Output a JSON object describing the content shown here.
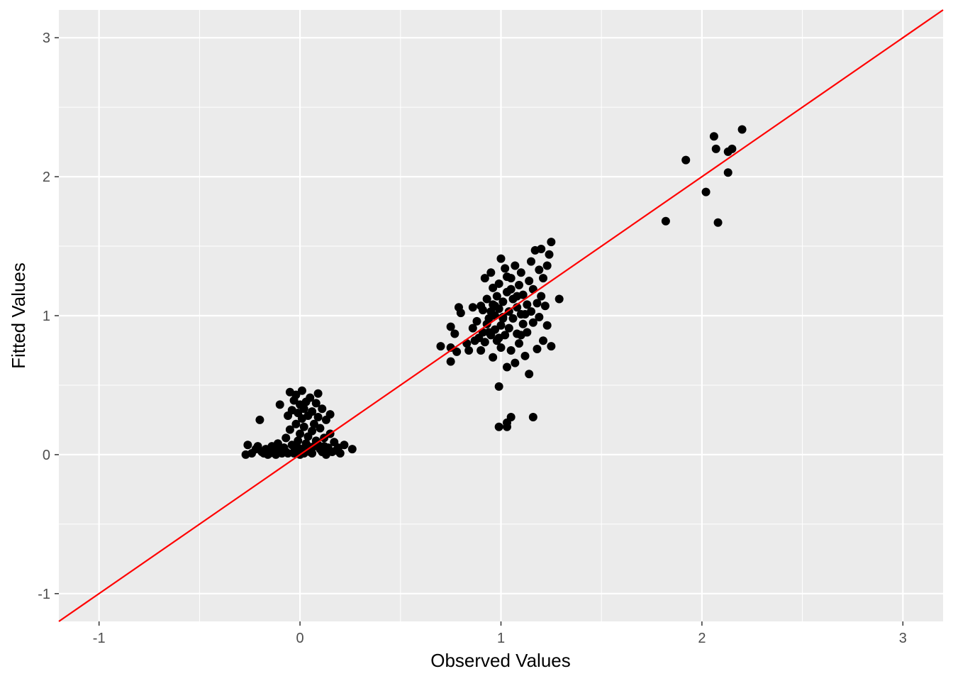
{
  "chart_data": {
    "type": "scatter",
    "title": "",
    "xlabel": "Observed Values",
    "ylabel": "Fitted Values",
    "xlim": [
      -1.2,
      3.2
    ],
    "ylim": [
      -1.2,
      3.2
    ],
    "x_ticks": [
      -1,
      0,
      1,
      2,
      3
    ],
    "y_ticks": [
      -1,
      0,
      1,
      2,
      3
    ],
    "x_tick_labels": [
      "-1",
      "0",
      "1",
      "2",
      "3"
    ],
    "y_tick_labels": [
      "-1",
      "0",
      "1",
      "2",
      "3"
    ],
    "grid": true,
    "legend": "none",
    "colors": {
      "panel": "#ebebeb",
      "grid": "#ffffff",
      "points": "#000000",
      "reference_line": "#ff0000"
    },
    "reference_line": {
      "slope": 1,
      "intercept": 0
    },
    "series": [
      {
        "points": [
          [
            1.82,
            1.68
          ],
          [
            1.92,
            2.12
          ],
          [
            2.02,
            1.89
          ],
          [
            2.06,
            2.29
          ],
          [
            2.07,
            2.2
          ],
          [
            2.08,
            1.67
          ],
          [
            2.13,
            2.18
          ],
          [
            2.13,
            2.03
          ],
          [
            2.15,
            2.2
          ],
          [
            2.2,
            2.34
          ],
          [
            0.99,
            0.2
          ],
          [
            1.03,
            0.2
          ],
          [
            1.03,
            0.23
          ],
          [
            1.05,
            0.27
          ],
          [
            1.16,
            0.27
          ],
          [
            0.99,
            0.49
          ],
          [
            0.7,
            0.78
          ],
          [
            0.75,
            0.67
          ],
          [
            0.75,
            0.77
          ],
          [
            0.75,
            0.92
          ],
          [
            0.77,
            0.87
          ],
          [
            0.78,
            0.74
          ],
          [
            0.79,
            1.06
          ],
          [
            0.8,
            1.02
          ],
          [
            0.83,
            0.8
          ],
          [
            0.84,
            0.75
          ],
          [
            0.86,
            1.06
          ],
          [
            0.86,
            0.91
          ],
          [
            0.87,
            0.82
          ],
          [
            0.88,
            0.96
          ],
          [
            0.89,
            0.84
          ],
          [
            0.9,
            1.07
          ],
          [
            0.9,
            0.75
          ],
          [
            0.91,
            1.04
          ],
          [
            0.91,
            0.88
          ],
          [
            0.92,
            0.81
          ],
          [
            0.92,
            1.27
          ],
          [
            0.93,
            0.94
          ],
          [
            0.93,
            1.12
          ],
          [
            0.94,
            0.98
          ],
          [
            0.95,
            1.31
          ],
          [
            0.95,
            0.86
          ],
          [
            0.96,
            1.2
          ],
          [
            0.96,
            1.08
          ],
          [
            0.96,
            0.7
          ],
          [
            0.97,
            1.0
          ],
          [
            0.97,
            0.9
          ],
          [
            0.98,
            1.14
          ],
          [
            0.98,
            0.82
          ],
          [
            0.99,
            1.23
          ],
          [
            0.99,
            1.05
          ],
          [
            1.0,
            0.93
          ],
          [
            1.0,
            1.41
          ],
          [
            1.0,
            0.77
          ],
          [
            1.01,
            1.1
          ],
          [
            1.01,
            0.98
          ],
          [
            1.02,
            1.34
          ],
          [
            1.02,
            0.86
          ],
          [
            1.03,
            1.17
          ],
          [
            1.03,
            0.63
          ],
          [
            1.04,
            1.03
          ],
          [
            1.04,
            0.91
          ],
          [
            1.05,
            1.27
          ],
          [
            1.05,
            0.75
          ],
          [
            1.06,
            1.12
          ],
          [
            1.06,
            0.98
          ],
          [
            1.07,
            1.36
          ],
          [
            1.07,
            0.66
          ],
          [
            1.08,
            1.06
          ],
          [
            1.08,
            0.87
          ],
          [
            1.09,
            1.22
          ],
          [
            1.09,
            0.8
          ],
          [
            1.1,
            1.01
          ],
          [
            1.1,
            1.31
          ],
          [
            1.11,
            0.94
          ],
          [
            1.11,
            1.15
          ],
          [
            1.12,
            0.71
          ],
          [
            1.13,
            1.08
          ],
          [
            1.13,
            0.88
          ],
          [
            1.14,
            1.25
          ],
          [
            1.14,
            0.58
          ],
          [
            1.15,
            1.03
          ],
          [
            1.15,
            1.39
          ],
          [
            1.16,
            0.95
          ],
          [
            1.16,
            1.19
          ],
          [
            1.17,
            1.47
          ],
          [
            1.18,
            1.09
          ],
          [
            1.18,
            0.76
          ],
          [
            1.19,
            1.33
          ],
          [
            1.19,
            0.99
          ],
          [
            1.2,
            1.48
          ],
          [
            1.2,
            1.14
          ],
          [
            1.21,
            0.82
          ],
          [
            1.21,
            1.27
          ],
          [
            1.22,
            1.07
          ],
          [
            1.23,
            1.36
          ],
          [
            1.23,
            0.93
          ],
          [
            1.24,
            1.44
          ],
          [
            1.25,
            0.78
          ],
          [
            1.25,
            1.53
          ],
          [
            1.29,
            1.12
          ],
          [
            1.01,
            0.99
          ],
          [
            0.97,
            1.07
          ],
          [
            1.05,
            1.19
          ],
          [
            0.94,
            0.88
          ],
          [
            1.08,
            1.14
          ],
          [
            1.12,
            1.01
          ],
          [
            0.99,
            0.84
          ],
          [
            1.03,
            1.28
          ],
          [
            0.95,
            1.03
          ],
          [
            1.1,
            0.86
          ],
          [
            -0.27,
            0.0
          ],
          [
            -0.26,
            0.07
          ],
          [
            -0.24,
            0.01
          ],
          [
            -0.22,
            0.04
          ],
          [
            -0.21,
            0.06
          ],
          [
            -0.2,
            0.25
          ],
          [
            -0.19,
            0.02
          ],
          [
            -0.17,
            0.04
          ],
          [
            -0.15,
            0.01
          ],
          [
            -0.14,
            0.06
          ],
          [
            -0.13,
            0.03
          ],
          [
            -0.12,
            0.0
          ],
          [
            -0.11,
            0.08
          ],
          [
            -0.1,
            0.36
          ],
          [
            -0.09,
            0.03
          ],
          [
            -0.08,
            0.05
          ],
          [
            -0.07,
            0.12
          ],
          [
            -0.06,
            0.01
          ],
          [
            -0.06,
            0.28
          ],
          [
            -0.05,
            0.45
          ],
          [
            -0.05,
            0.18
          ],
          [
            -0.04,
            0.07
          ],
          [
            -0.04,
            0.32
          ],
          [
            -0.03,
            0.39
          ],
          [
            -0.03,
            0.02
          ],
          [
            -0.02,
            0.22
          ],
          [
            -0.02,
            0.43
          ],
          [
            -0.01,
            0.1
          ],
          [
            -0.01,
            0.3
          ],
          [
            0.0,
            0.0
          ],
          [
            0.0,
            0.36
          ],
          [
            0.0,
            0.15
          ],
          [
            0.01,
            0.26
          ],
          [
            0.01,
            0.04
          ],
          [
            0.01,
            0.46
          ],
          [
            0.02,
            0.2
          ],
          [
            0.02,
            0.33
          ],
          [
            0.03,
            0.08
          ],
          [
            0.03,
            0.38
          ],
          [
            0.04,
            0.13
          ],
          [
            0.04,
            0.28
          ],
          [
            0.05,
            0.02
          ],
          [
            0.05,
            0.41
          ],
          [
            0.06,
            0.17
          ],
          [
            0.06,
            0.31
          ],
          [
            0.07,
            0.06
          ],
          [
            0.07,
            0.22
          ],
          [
            0.08,
            0.37
          ],
          [
            0.08,
            0.1
          ],
          [
            0.09,
            0.44
          ],
          [
            0.09,
            0.27
          ],
          [
            0.1,
            0.04
          ],
          [
            0.1,
            0.19
          ],
          [
            0.11,
            0.33
          ],
          [
            0.12,
            0.12
          ],
          [
            0.13,
            0.25
          ],
          [
            0.14,
            0.05
          ],
          [
            0.15,
            0.29
          ],
          [
            0.15,
            0.15
          ],
          [
            0.16,
            0.02
          ],
          [
            0.17,
            0.09
          ],
          [
            0.19,
            0.05
          ],
          [
            0.2,
            0.01
          ],
          [
            0.22,
            0.07
          ],
          [
            0.26,
            0.04
          ],
          [
            -0.09,
            0.01
          ],
          [
            -0.07,
            0.02
          ],
          [
            -0.03,
            0.01
          ],
          [
            0.02,
            0.01
          ],
          [
            0.06,
            0.01
          ],
          [
            0.11,
            0.02
          ],
          [
            0.13,
            0.0
          ],
          [
            -0.16,
            0.0
          ],
          [
            -0.18,
            0.01
          ],
          [
            0.18,
            0.03
          ],
          [
            -0.01,
            0.05
          ],
          [
            0.04,
            0.06
          ],
          [
            -0.11,
            0.05
          ],
          [
            0.09,
            0.07
          ],
          [
            0.12,
            0.06
          ]
        ]
      }
    ]
  }
}
